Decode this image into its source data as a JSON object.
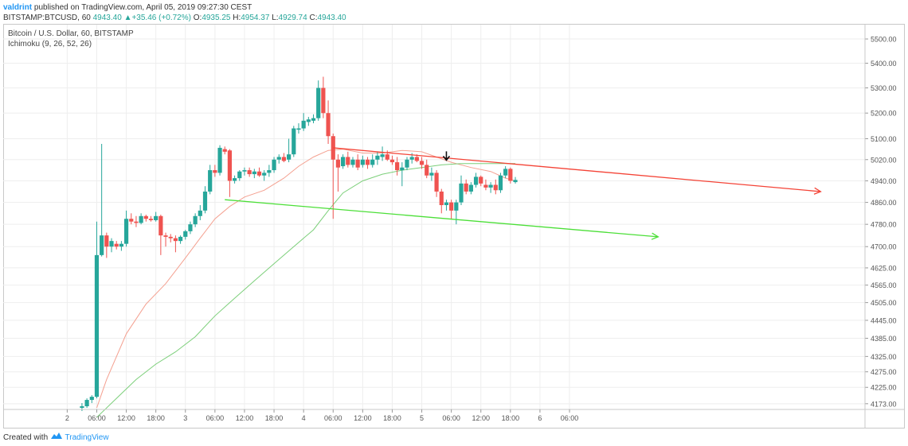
{
  "header": {
    "author": "valdrint",
    "published_text": "published on TradingView.com, April 05, 2019 09:27:30 CEST"
  },
  "ohlc": {
    "symbol": "BITSTAMP:BTCUSD, 60",
    "last": "4943.40",
    "change": "+35.46 (+0.72%)",
    "o_label": "O:",
    "o": "4935.25",
    "h_label": "H:",
    "h": "4954.37",
    "l_label": "L:",
    "l": "4929.74",
    "c_label": "C:",
    "c": "4943.40"
  },
  "legend": {
    "title": "Bitcoin / U.S. Dollar, 60, BITSTAMP",
    "indicator": "Ichimoku (9, 26, 52, 26)"
  },
  "footer": {
    "created_with": "Created with",
    "brand": "TradingView"
  },
  "colors": {
    "up": "#26a69a",
    "down": "#ef5350",
    "red_line": "#f44336",
    "green_line": "#4cdf38",
    "ichimoku_red": "#f4a090",
    "ichimoku_green": "#7ccf7a"
  },
  "chart_data": {
    "type": "candlestick",
    "y_scale": "log",
    "ylim": [
      4155,
      5560
    ],
    "xlim": [
      -13,
      162
    ],
    "y_ticks": [
      5500,
      5400,
      5300,
      5200,
      5100,
      5020,
      4940,
      4860,
      4780,
      4700,
      4625,
      4565,
      4505,
      4445,
      4385,
      4325,
      4275,
      4225,
      4173
    ],
    "y_tick_labels": [
      "5500.00",
      "5400.00",
      "5300.00",
      "5200.00",
      "5100.00",
      "5020.00",
      "4940.00",
      "4860.00",
      "4780.00",
      "4700.00",
      "4625.00",
      "4565.00",
      "4505.00",
      "4445.00",
      "4385.00",
      "4325.00",
      "4275.00",
      "4225.00",
      "4173.00"
    ],
    "x_ticks": [
      {
        "x": 0,
        "label": "2"
      },
      {
        "x": 6,
        "label": "06:00"
      },
      {
        "x": 12,
        "label": "12:00"
      },
      {
        "x": 18,
        "label": "18:00"
      },
      {
        "x": 24,
        "label": "3"
      },
      {
        "x": 30,
        "label": "06:00"
      },
      {
        "x": 36,
        "label": "12:00"
      },
      {
        "x": 42,
        "label": "18:00"
      },
      {
        "x": 48,
        "label": "4"
      },
      {
        "x": 54,
        "label": "06:00"
      },
      {
        "x": 60,
        "label": "12:00"
      },
      {
        "x": 66,
        "label": "18:00"
      },
      {
        "x": 72,
        "label": "5"
      },
      {
        "x": 78,
        "label": "06:00"
      },
      {
        "x": 84,
        "label": "12:00"
      },
      {
        "x": 90,
        "label": "18:00"
      },
      {
        "x": 96,
        "label": "6"
      },
      {
        "x": 102,
        "label": "06:00"
      }
    ],
    "candles": [
      {
        "x": 3,
        "o": 4160,
        "h": 4175,
        "l": 4150,
        "c": 4165
      },
      {
        "x": 4,
        "o": 4165,
        "h": 4190,
        "l": 4160,
        "c": 4185
      },
      {
        "x": 5,
        "o": 4185,
        "h": 4200,
        "l": 4175,
        "c": 4195
      },
      {
        "x": 6,
        "o": 4195,
        "h": 4790,
        "l": 4190,
        "c": 4670
      },
      {
        "x": 7,
        "o": 4670,
        "h": 5080,
        "l": 4665,
        "c": 4740
      },
      {
        "x": 8,
        "o": 4740,
        "h": 4750,
        "l": 4660,
        "c": 4700
      },
      {
        "x": 9,
        "o": 4700,
        "h": 4730,
        "l": 4680,
        "c": 4720
      },
      {
        "x": 10,
        "o": 4710,
        "h": 4720,
        "l": 4690,
        "c": 4700
      },
      {
        "x": 11,
        "o": 4700,
        "h": 4720,
        "l": 4685,
        "c": 4710
      },
      {
        "x": 12,
        "o": 4710,
        "h": 4830,
        "l": 4700,
        "c": 4800
      },
      {
        "x": 13,
        "o": 4800,
        "h": 4820,
        "l": 4780,
        "c": 4790
      },
      {
        "x": 14,
        "o": 4790,
        "h": 4810,
        "l": 4770,
        "c": 4785
      },
      {
        "x": 15,
        "o": 4785,
        "h": 4820,
        "l": 4780,
        "c": 4810
      },
      {
        "x": 16,
        "o": 4810,
        "h": 4815,
        "l": 4790,
        "c": 4800
      },
      {
        "x": 17,
        "o": 4800,
        "h": 4810,
        "l": 4790,
        "c": 4795
      },
      {
        "x": 18,
        "o": 4795,
        "h": 4825,
        "l": 4790,
        "c": 4810
      },
      {
        "x": 19,
        "o": 4810,
        "h": 4815,
        "l": 4670,
        "c": 4740
      },
      {
        "x": 20,
        "o": 4740,
        "h": 4750,
        "l": 4700,
        "c": 4735
      },
      {
        "x": 21,
        "o": 4735,
        "h": 4745,
        "l": 4715,
        "c": 4730
      },
      {
        "x": 22,
        "o": 4730,
        "h": 4740,
        "l": 4680,
        "c": 4720
      },
      {
        "x": 23,
        "o": 4720,
        "h": 4740,
        "l": 4710,
        "c": 4735
      },
      {
        "x": 24,
        "o": 4735,
        "h": 4760,
        "l": 4725,
        "c": 4755
      },
      {
        "x": 25,
        "o": 4755,
        "h": 4790,
        "l": 4745,
        "c": 4780
      },
      {
        "x": 26,
        "o": 4780,
        "h": 4820,
        "l": 4770,
        "c": 4810
      },
      {
        "x": 27,
        "o": 4810,
        "h": 4850,
        "l": 4795,
        "c": 4830
      },
      {
        "x": 28,
        "o": 4830,
        "h": 4920,
        "l": 4820,
        "c": 4900
      },
      {
        "x": 29,
        "o": 4900,
        "h": 5000,
        "l": 4890,
        "c": 4980
      },
      {
        "x": 30,
        "o": 4980,
        "h": 5000,
        "l": 4955,
        "c": 4970
      },
      {
        "x": 31,
        "o": 4970,
        "h": 5075,
        "l": 4960,
        "c": 5065
      },
      {
        "x": 32,
        "o": 5060,
        "h": 5070,
        "l": 5040,
        "c": 5050
      },
      {
        "x": 33,
        "o": 5055,
        "h": 5060,
        "l": 4880,
        "c": 4940
      },
      {
        "x": 34,
        "o": 4940,
        "h": 4960,
        "l": 4930,
        "c": 4950
      },
      {
        "x": 35,
        "o": 4950,
        "h": 4980,
        "l": 4940,
        "c": 4975
      },
      {
        "x": 36,
        "o": 4975,
        "h": 4990,
        "l": 4960,
        "c": 4980
      },
      {
        "x": 37,
        "o": 4980,
        "h": 4990,
        "l": 4955,
        "c": 4965
      },
      {
        "x": 38,
        "o": 4965,
        "h": 4985,
        "l": 4950,
        "c": 4975
      },
      {
        "x": 39,
        "o": 4975,
        "h": 4990,
        "l": 4955,
        "c": 4960
      },
      {
        "x": 40,
        "o": 4960,
        "h": 4980,
        "l": 4940,
        "c": 4970
      },
      {
        "x": 41,
        "o": 4970,
        "h": 5000,
        "l": 4955,
        "c": 4980
      },
      {
        "x": 42,
        "o": 4980,
        "h": 5030,
        "l": 4970,
        "c": 5020
      },
      {
        "x": 43,
        "o": 5020,
        "h": 5040,
        "l": 5005,
        "c": 5030
      },
      {
        "x": 44,
        "o": 5030,
        "h": 5045,
        "l": 5010,
        "c": 5015
      },
      {
        "x": 45,
        "o": 5020,
        "h": 5100,
        "l": 5010,
        "c": 5040
      },
      {
        "x": 46,
        "o": 5040,
        "h": 5150,
        "l": 5030,
        "c": 5140
      },
      {
        "x": 47,
        "o": 5135,
        "h": 5160,
        "l": 5120,
        "c": 5140
      },
      {
        "x": 48,
        "o": 5140,
        "h": 5200,
        "l": 5130,
        "c": 5170
      },
      {
        "x": 49,
        "o": 5165,
        "h": 5185,
        "l": 5150,
        "c": 5175
      },
      {
        "x": 50,
        "o": 5170,
        "h": 5195,
        "l": 5160,
        "c": 5180
      },
      {
        "x": 51,
        "o": 5180,
        "h": 5330,
        "l": 5170,
        "c": 5300
      },
      {
        "x": 52,
        "o": 5300,
        "h": 5345,
        "l": 5180,
        "c": 5200
      },
      {
        "x": 53,
        "o": 5200,
        "h": 5250,
        "l": 5080,
        "c": 5110
      },
      {
        "x": 54,
        "o": 5110,
        "h": 5120,
        "l": 4800,
        "c": 5020
      },
      {
        "x": 55,
        "o": 5020,
        "h": 5040,
        "l": 4900,
        "c": 4990
      },
      {
        "x": 56,
        "o": 4995,
        "h": 5040,
        "l": 4985,
        "c": 5030
      },
      {
        "x": 57,
        "o": 5030,
        "h": 5050,
        "l": 4990,
        "c": 5000
      },
      {
        "x": 58,
        "o": 5000,
        "h": 5030,
        "l": 4990,
        "c": 5020
      },
      {
        "x": 59,
        "o": 5020,
        "h": 5040,
        "l": 4980,
        "c": 4990
      },
      {
        "x": 60,
        "o": 5000,
        "h": 5035,
        "l": 4990,
        "c": 5020
      },
      {
        "x": 61,
        "o": 5020,
        "h": 5030,
        "l": 4985,
        "c": 5000
      },
      {
        "x": 62,
        "o": 5000,
        "h": 5040,
        "l": 4990,
        "c": 5020
      },
      {
        "x": 63,
        "o": 5020,
        "h": 5050,
        "l": 5000,
        "c": 5035
      },
      {
        "x": 64,
        "o": 5030,
        "h": 5070,
        "l": 5015,
        "c": 5040
      },
      {
        "x": 65,
        "o": 5040,
        "h": 5055,
        "l": 5015,
        "c": 5020
      },
      {
        "x": 66,
        "o": 5020,
        "h": 5035,
        "l": 5000,
        "c": 5010
      },
      {
        "x": 67,
        "o": 5010,
        "h": 5030,
        "l": 4960,
        "c": 4980
      },
      {
        "x": 68,
        "o": 4980,
        "h": 5010,
        "l": 4920,
        "c": 4990
      },
      {
        "x": 69,
        "o": 4990,
        "h": 5030,
        "l": 4980,
        "c": 5020
      },
      {
        "x": 70,
        "o": 5020,
        "h": 5045,
        "l": 5005,
        "c": 5030
      },
      {
        "x": 71,
        "o": 5030,
        "h": 5040,
        "l": 5010,
        "c": 5015
      },
      {
        "x": 72,
        "o": 5015,
        "h": 5030,
        "l": 4985,
        "c": 5000
      },
      {
        "x": 73,
        "o": 5000,
        "h": 5020,
        "l": 4950,
        "c": 4960
      },
      {
        "x": 74,
        "o": 4960,
        "h": 4990,
        "l": 4940,
        "c": 4970
      },
      {
        "x": 75,
        "o": 4970,
        "h": 4980,
        "l": 4880,
        "c": 4900
      },
      {
        "x": 76,
        "o": 4900,
        "h": 4910,
        "l": 4820,
        "c": 4850
      },
      {
        "x": 77,
        "o": 4850,
        "h": 4870,
        "l": 4830,
        "c": 4860
      },
      {
        "x": 78,
        "o": 4860,
        "h": 4870,
        "l": 4800,
        "c": 4830
      },
      {
        "x": 79,
        "o": 4830,
        "h": 4870,
        "l": 4780,
        "c": 4860
      },
      {
        "x": 80,
        "o": 4860,
        "h": 4960,
        "l": 4850,
        "c": 4930
      },
      {
        "x": 81,
        "o": 4930,
        "h": 4945,
        "l": 4890,
        "c": 4900
      },
      {
        "x": 82,
        "o": 4900,
        "h": 4935,
        "l": 4890,
        "c": 4925
      },
      {
        "x": 83,
        "o": 4925,
        "h": 4970,
        "l": 4915,
        "c": 4955
      },
      {
        "x": 84,
        "o": 4955,
        "h": 4960,
        "l": 4920,
        "c": 4930
      },
      {
        "x": 85,
        "o": 4925,
        "h": 4945,
        "l": 4905,
        "c": 4915
      },
      {
        "x": 86,
        "o": 4915,
        "h": 4935,
        "l": 4895,
        "c": 4925
      },
      {
        "x": 87,
        "o": 4925,
        "h": 4945,
        "l": 4890,
        "c": 4905
      },
      {
        "x": 88,
        "o": 4905,
        "h": 4970,
        "l": 4895,
        "c": 4960
      },
      {
        "x": 89,
        "o": 4960,
        "h": 4995,
        "l": 4950,
        "c": 4985
      },
      {
        "x": 90,
        "o": 4985,
        "h": 4990,
        "l": 4930,
        "c": 4940
      },
      {
        "x": 91,
        "o": 4935.25,
        "h": 4954.37,
        "l": 4929.74,
        "c": 4943.4
      }
    ],
    "ichimoku_red": [
      [
        6,
        4160
      ],
      [
        8,
        4250
      ],
      [
        12,
        4400
      ],
      [
        16,
        4500
      ],
      [
        20,
        4570
      ],
      [
        24,
        4660
      ],
      [
        27,
        4730
      ],
      [
        30,
        4800
      ],
      [
        33,
        4845
      ],
      [
        36,
        4880
      ],
      [
        40,
        4905
      ],
      [
        44,
        4950
      ],
      [
        47,
        4995
      ],
      [
        50,
        5030
      ],
      [
        53,
        5055
      ],
      [
        56,
        5060
      ],
      [
        60,
        5045
      ],
      [
        64,
        5045
      ],
      [
        68,
        5055
      ],
      [
        72,
        5050
      ],
      [
        75,
        5030
      ],
      [
        78,
        5010
      ],
      [
        82,
        4990
      ],
      [
        86,
        4975
      ],
      [
        89,
        4950
      ],
      [
        91,
        4940
      ]
    ],
    "ichimoku_green": [
      [
        6,
        4130
      ],
      [
        10,
        4190
      ],
      [
        14,
        4250
      ],
      [
        18,
        4300
      ],
      [
        22,
        4340
      ],
      [
        26,
        4390
      ],
      [
        30,
        4460
      ],
      [
        34,
        4520
      ],
      [
        38,
        4580
      ],
      [
        42,
        4640
      ],
      [
        46,
        4700
      ],
      [
        50,
        4760
      ],
      [
        53,
        4830
      ],
      [
        56,
        4895
      ],
      [
        60,
        4940
      ],
      [
        64,
        4965
      ],
      [
        68,
        4980
      ],
      [
        72,
        4990
      ],
      [
        76,
        5000
      ],
      [
        80,
        5005
      ],
      [
        84,
        5005
      ],
      [
        88,
        5005
      ],
      [
        91,
        5005
      ]
    ],
    "trendlines": [
      {
        "name": "resistance",
        "color": "#f44336",
        "from": [
          54,
          5065
        ],
        "to": [
          153,
          4900
        ],
        "arrow": true
      },
      {
        "name": "support",
        "color": "#4cdf38",
        "from": [
          32,
          4870
        ],
        "to": [
          120,
          4735
        ],
        "arrow": true
      }
    ],
    "marker": {
      "x": 77,
      "y": 5018
    }
  }
}
